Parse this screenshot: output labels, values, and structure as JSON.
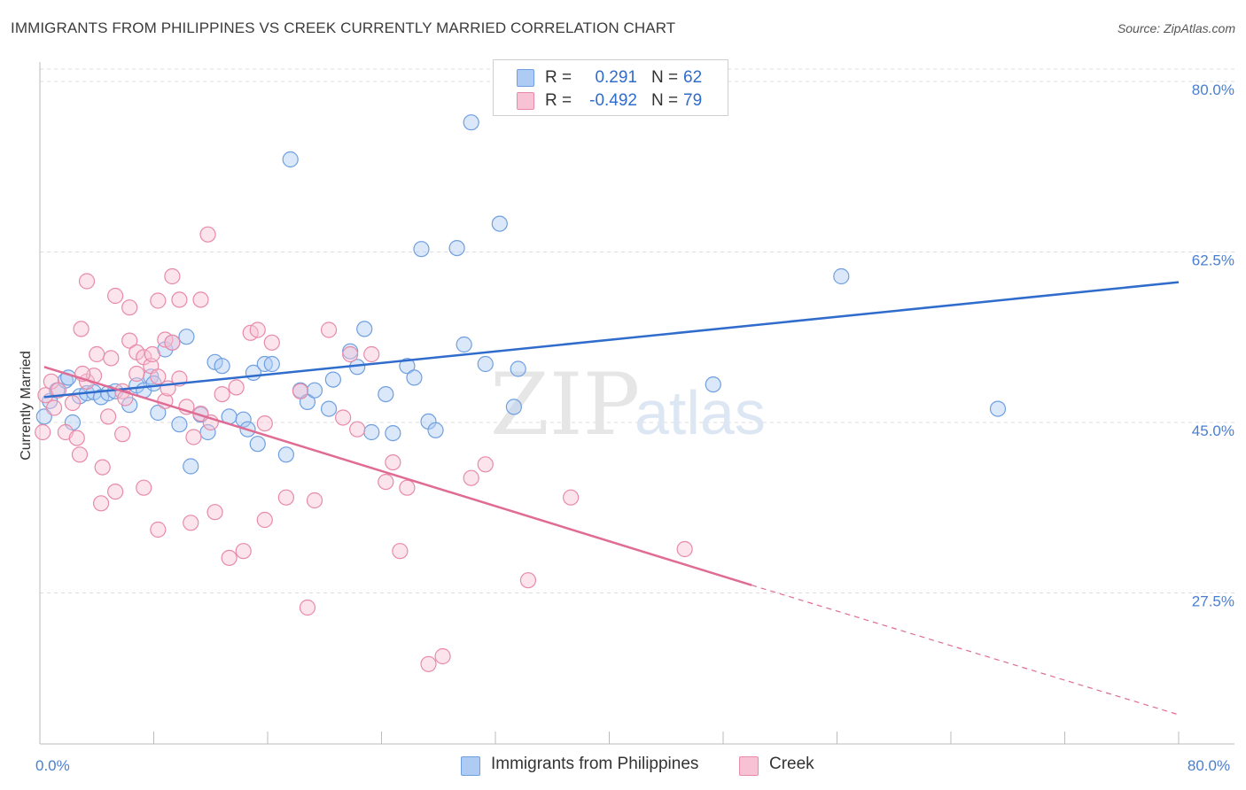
{
  "title": "IMMIGRANTS FROM PHILIPPINES VS CREEK CURRENTLY MARRIED CORRELATION CHART",
  "source": "Source: ZipAtlas.com",
  "watermark": {
    "zip": "ZIP",
    "atlas": "atlas"
  },
  "legend": {
    "rows": [
      {
        "r_label": "R =",
        "r_value": "0.291",
        "n_label": "N =",
        "n_value": "62",
        "color": "#aecbf3",
        "border": "#6f9fe0"
      },
      {
        "r_label": "R =",
        "r_value": "-0.492",
        "n_label": "N =",
        "n_value": "79",
        "color": "#f7c3d4",
        "border": "#e88aa8"
      }
    ]
  },
  "bottom_legend": [
    {
      "label": "Immigrants from Philippines",
      "color": "#aecbf3",
      "border": "#6f9fe0"
    },
    {
      "label": "Creek",
      "color": "#f7c3d4",
      "border": "#e88aa8"
    }
  ],
  "chart_data": {
    "type": "scatter",
    "xlabel": "",
    "ylabel": "Currently Married",
    "xlim": [
      0,
      80
    ],
    "ylim": [
      12,
      82
    ],
    "x_tick_labels": [
      {
        "value": 0,
        "label": "0.0%"
      },
      {
        "value": 80,
        "label": "80.0%"
      }
    ],
    "y_tick_labels": [
      {
        "value": 80,
        "label": "80.0%"
      },
      {
        "value": 62.5,
        "label": "62.5%"
      },
      {
        "value": 45,
        "label": "45.0%"
      },
      {
        "value": 27.5,
        "label": "27.5%"
      }
    ],
    "x_minor_ticks": [
      8,
      16,
      24,
      32,
      40,
      48,
      56,
      64,
      72,
      80
    ],
    "grid": true,
    "legend_position": "top-center",
    "series": [
      {
        "name": "Immigrants from Philippines",
        "color": "#6f9fe0",
        "fill": "#aecbf3",
        "trend": {
          "x": [
            0.3,
            80
          ],
          "y": [
            47.6,
            59.4
          ],
          "color": "#2f6ccc",
          "style": "solid"
        },
        "points": [
          [
            0.7,
            47.2
          ],
          [
            1.2,
            48.3
          ],
          [
            1.8,
            49.3
          ],
          [
            2.3,
            45.0
          ],
          [
            2.8,
            47.7
          ],
          [
            3.3,
            48.0
          ],
          [
            3.8,
            48.1
          ],
          [
            4.3,
            47.6
          ],
          [
            4.8,
            48.0
          ],
          [
            5.3,
            48.2
          ],
          [
            6.3,
            46.8
          ],
          [
            6.8,
            48.8
          ],
          [
            7.3,
            48.3
          ],
          [
            7.8,
            49.7
          ],
          [
            8.0,
            49.0
          ],
          [
            8.3,
            46.0
          ],
          [
            8.8,
            52.5
          ],
          [
            9.3,
            53.2
          ],
          [
            9.8,
            44.8
          ],
          [
            10.3,
            53.8
          ],
          [
            10.6,
            40.5
          ],
          [
            11.3,
            45.8
          ],
          [
            11.8,
            44.0
          ],
          [
            12.3,
            51.2
          ],
          [
            12.8,
            50.8
          ],
          [
            13.3,
            45.6
          ],
          [
            14.3,
            45.3
          ],
          [
            14.6,
            44.3
          ],
          [
            15.0,
            50.1
          ],
          [
            15.3,
            42.8
          ],
          [
            15.8,
            51.0
          ],
          [
            16.3,
            51.0
          ],
          [
            17.3,
            41.7
          ],
          [
            17.6,
            72.0
          ],
          [
            18.3,
            48.3
          ],
          [
            18.8,
            47.1
          ],
          [
            19.3,
            48.3
          ],
          [
            20.3,
            46.4
          ],
          [
            20.6,
            49.4
          ],
          [
            21.8,
            52.3
          ],
          [
            22.3,
            50.7
          ],
          [
            22.8,
            54.6
          ],
          [
            23.3,
            44.0
          ],
          [
            24.3,
            47.9
          ],
          [
            24.8,
            43.9
          ],
          [
            25.8,
            50.8
          ],
          [
            26.3,
            49.6
          ],
          [
            26.8,
            62.8
          ],
          [
            27.3,
            45.1
          ],
          [
            27.8,
            44.2
          ],
          [
            29.3,
            62.9
          ],
          [
            29.8,
            53.0
          ],
          [
            30.3,
            75.8
          ],
          [
            31.3,
            51.0
          ],
          [
            32.3,
            65.4
          ],
          [
            33.3,
            46.6
          ],
          [
            33.6,
            50.5
          ],
          [
            47.3,
            48.9
          ],
          [
            56.3,
            60.0
          ],
          [
            67.3,
            46.4
          ],
          [
            0.3,
            45.6
          ],
          [
            2.0,
            49.6
          ]
        ]
      },
      {
        "name": "Creek",
        "color": "#e88aa8",
        "fill": "#f7c3d4",
        "trend": {
          "x": [
            0.3,
            50
          ],
          "y": [
            50.7,
            28.3
          ],
          "color": "#e06b94",
          "style": "solid",
          "extension": {
            "x": [
              50,
              80
            ],
            "y": [
              28.3,
              15.0
            ],
            "style": "dashed"
          }
        },
        "points": [
          [
            0.2,
            44.0
          ],
          [
            0.4,
            47.8
          ],
          [
            0.8,
            49.2
          ],
          [
            1.3,
            48.3
          ],
          [
            1.8,
            44.0
          ],
          [
            2.3,
            47.0
          ],
          [
            2.6,
            43.4
          ],
          [
            2.8,
            41.7
          ],
          [
            2.9,
            54.6
          ],
          [
            3.3,
            49.2
          ],
          [
            3.3,
            59.5
          ],
          [
            3.8,
            49.8
          ],
          [
            4.0,
            52.0
          ],
          [
            4.3,
            36.7
          ],
          [
            4.4,
            40.4
          ],
          [
            4.8,
            45.6
          ],
          [
            5.0,
            51.6
          ],
          [
            5.3,
            37.9
          ],
          [
            5.3,
            58.0
          ],
          [
            5.8,
            48.2
          ],
          [
            5.8,
            43.8
          ],
          [
            6.3,
            53.4
          ],
          [
            6.3,
            56.8
          ],
          [
            6.8,
            50.0
          ],
          [
            6.8,
            52.2
          ],
          [
            7.3,
            51.7
          ],
          [
            7.3,
            38.3
          ],
          [
            7.8,
            50.8
          ],
          [
            7.9,
            52.0
          ],
          [
            8.3,
            57.5
          ],
          [
            8.3,
            49.7
          ],
          [
            8.3,
            34.0
          ],
          [
            8.8,
            53.5
          ],
          [
            8.8,
            47.2
          ],
          [
            9.3,
            60.0
          ],
          [
            9.3,
            53.2
          ],
          [
            9.8,
            49.5
          ],
          [
            9.8,
            57.6
          ],
          [
            10.3,
            46.6
          ],
          [
            10.6,
            34.7
          ],
          [
            10.8,
            43.5
          ],
          [
            11.3,
            45.9
          ],
          [
            11.3,
            57.6
          ],
          [
            11.8,
            64.3
          ],
          [
            12.3,
            35.8
          ],
          [
            12.8,
            47.9
          ],
          [
            13.3,
            31.1
          ],
          [
            13.8,
            48.6
          ],
          [
            14.3,
            31.8
          ],
          [
            14.8,
            54.2
          ],
          [
            15.3,
            54.5
          ],
          [
            15.8,
            44.9
          ],
          [
            15.8,
            35.0
          ],
          [
            16.3,
            53.2
          ],
          [
            17.3,
            37.3
          ],
          [
            18.3,
            48.2
          ],
          [
            18.8,
            26.0
          ],
          [
            19.3,
            37.0
          ],
          [
            20.3,
            54.5
          ],
          [
            21.3,
            45.5
          ],
          [
            21.8,
            52.0
          ],
          [
            22.3,
            44.3
          ],
          [
            23.3,
            52.0
          ],
          [
            24.3,
            38.9
          ],
          [
            24.8,
            40.9
          ],
          [
            25.3,
            31.8
          ],
          [
            25.8,
            38.3
          ],
          [
            27.3,
            20.2
          ],
          [
            28.3,
            21.0
          ],
          [
            30.3,
            39.3
          ],
          [
            31.3,
            40.7
          ],
          [
            34.3,
            28.8
          ],
          [
            37.3,
            37.3
          ],
          [
            45.3,
            32.0
          ],
          [
            1.0,
            46.5
          ],
          [
            3.0,
            50.0
          ],
          [
            6.0,
            47.5
          ],
          [
            9.0,
            48.5
          ],
          [
            12.0,
            45.0
          ]
        ]
      }
    ]
  }
}
